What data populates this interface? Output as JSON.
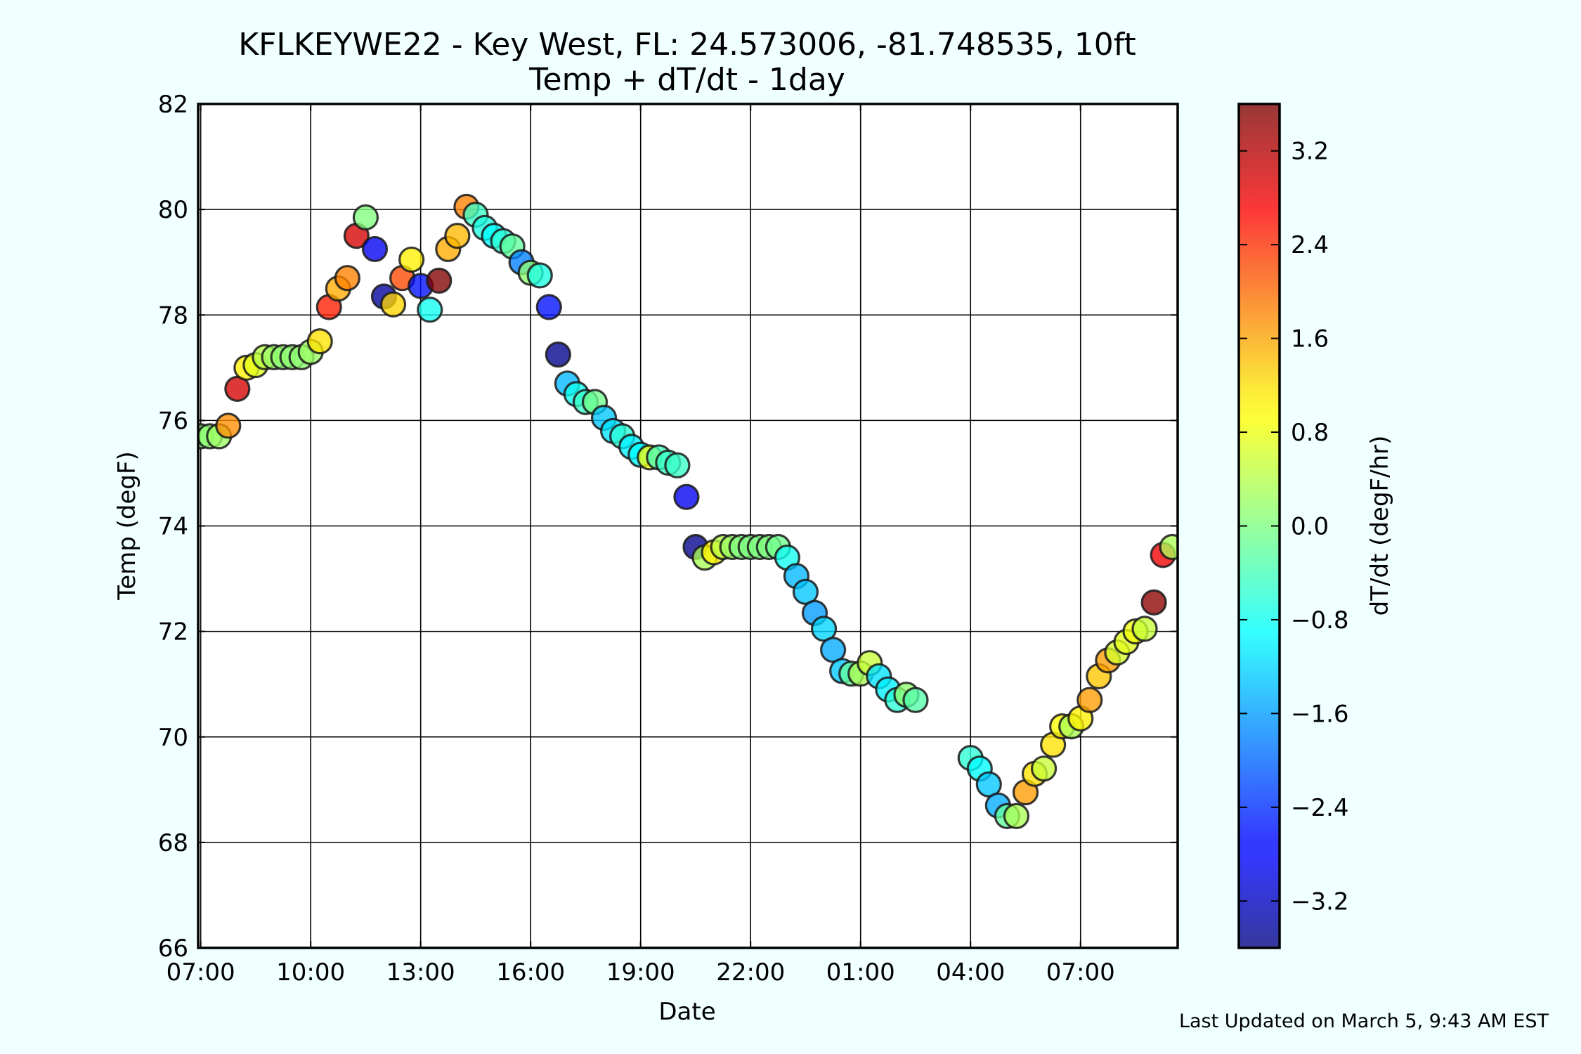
{
  "chart_data": {
    "type": "scatter",
    "title": "KFLKEYWE22 - Key West, FL: 24.573006, -81.748535, 10ft",
    "subtitle": "Temp + dT/dt - 1day",
    "xlabel": "Date",
    "ylabel": "Temp (degF)",
    "x_unit": "hours since 07:00 (first day)",
    "xlim": [
      -0.07,
      26.65
    ],
    "ylim": [
      66,
      82
    ],
    "yticks": [
      66,
      68,
      70,
      72,
      74,
      76,
      78,
      80,
      82
    ],
    "xticks": [
      {
        "x": 0,
        "label": "07:00"
      },
      {
        "x": 3,
        "label": "10:00"
      },
      {
        "x": 6,
        "label": "13:00"
      },
      {
        "x": 9,
        "label": "16:00"
      },
      {
        "x": 12,
        "label": "19:00"
      },
      {
        "x": 15,
        "label": "22:00"
      },
      {
        "x": 18,
        "label": "01:00"
      },
      {
        "x": 21,
        "label": "04:00"
      },
      {
        "x": 24,
        "label": "07:00"
      }
    ],
    "grid": true,
    "colorbar": {
      "label": "dT/dt (degF/hr)",
      "range": [
        -3.6,
        3.6
      ],
      "ticks": [
        3.2,
        2.4,
        1.6,
        0.8,
        0.0,
        -0.8,
        -1.6,
        -2.4,
        -3.2
      ],
      "tick_labels": [
        "3.2",
        "2.4",
        "1.6",
        "0.8",
        "0.0",
        "−0.8",
        "−1.6",
        "−2.4",
        "−3.2"
      ],
      "colormap": "jet"
    },
    "points": [
      {
        "x": 0.0,
        "y": 75.7,
        "c": 0.0
      },
      {
        "x": 0.25,
        "y": 75.7,
        "c": 0.1
      },
      {
        "x": 0.5,
        "y": 75.7,
        "c": 0.2
      },
      {
        "x": 0.75,
        "y": 75.9,
        "c": 1.7
      },
      {
        "x": 1.0,
        "y": 76.6,
        "c": 3.0
      },
      {
        "x": 1.25,
        "y": 77.0,
        "c": 1.0
      },
      {
        "x": 1.5,
        "y": 77.05,
        "c": 0.7
      },
      {
        "x": 1.75,
        "y": 77.2,
        "c": 0.4
      },
      {
        "x": 2.0,
        "y": 77.2,
        "c": 0.2
      },
      {
        "x": 2.25,
        "y": 77.2,
        "c": 0.1
      },
      {
        "x": 2.5,
        "y": 77.2,
        "c": 0.1
      },
      {
        "x": 2.75,
        "y": 77.2,
        "c": 0.1
      },
      {
        "x": 3.0,
        "y": 77.3,
        "c": 0.2
      },
      {
        "x": 3.25,
        "y": 77.5,
        "c": 1.1
      },
      {
        "x": 3.5,
        "y": 78.15,
        "c": 2.5
      },
      {
        "x": 3.75,
        "y": 78.5,
        "c": 1.5
      },
      {
        "x": 4.0,
        "y": 78.7,
        "c": 1.8
      },
      {
        "x": 4.25,
        "y": 79.5,
        "c": 3.0
      },
      {
        "x": 4.5,
        "y": 79.85,
        "c": 0.0
      },
      {
        "x": 4.75,
        "y": 79.25,
        "c": -2.8
      },
      {
        "x": 5.0,
        "y": 78.35,
        "c": -3.4
      },
      {
        "x": 5.25,
        "y": 78.2,
        "c": 1.2
      },
      {
        "x": 5.5,
        "y": 78.7,
        "c": 2.2
      },
      {
        "x": 5.75,
        "y": 79.05,
        "c": 1.0
      },
      {
        "x": 6.0,
        "y": 78.55,
        "c": -2.6
      },
      {
        "x": 6.25,
        "y": 78.1,
        "c": -0.8
      },
      {
        "x": 6.5,
        "y": 78.65,
        "c": 3.6
      },
      {
        "x": 6.75,
        "y": 79.25,
        "c": 1.5
      },
      {
        "x": 7.0,
        "y": 79.5,
        "c": 1.4
      },
      {
        "x": 7.25,
        "y": 80.05,
        "c": 1.8
      },
      {
        "x": 7.5,
        "y": 79.9,
        "c": -0.5
      },
      {
        "x": 7.75,
        "y": 79.65,
        "c": -0.7
      },
      {
        "x": 8.0,
        "y": 79.5,
        "c": -0.9
      },
      {
        "x": 8.25,
        "y": 79.4,
        "c": -0.6
      },
      {
        "x": 8.5,
        "y": 79.3,
        "c": -0.2
      },
      {
        "x": 8.75,
        "y": 79.0,
        "c": -1.8
      },
      {
        "x": 9.0,
        "y": 78.8,
        "c": 0.1
      },
      {
        "x": 9.25,
        "y": 78.75,
        "c": -0.7
      },
      {
        "x": 9.5,
        "y": 78.15,
        "c": -2.6
      },
      {
        "x": 9.75,
        "y": 77.25,
        "c": -3.5
      },
      {
        "x": 10.0,
        "y": 76.7,
        "c": -1.4
      },
      {
        "x": 10.25,
        "y": 76.5,
        "c": -0.8
      },
      {
        "x": 10.5,
        "y": 76.35,
        "c": -0.5
      },
      {
        "x": 10.75,
        "y": 76.35,
        "c": -0.1
      },
      {
        "x": 11.0,
        "y": 76.05,
        "c": -1.3
      },
      {
        "x": 11.25,
        "y": 75.8,
        "c": -1.1
      },
      {
        "x": 11.5,
        "y": 75.7,
        "c": -0.6
      },
      {
        "x": 11.75,
        "y": 75.5,
        "c": -1.0
      },
      {
        "x": 12.0,
        "y": 75.35,
        "c": -0.9
      },
      {
        "x": 12.25,
        "y": 75.3,
        "c": 0.8
      },
      {
        "x": 12.5,
        "y": 75.3,
        "c": -0.4
      },
      {
        "x": 12.75,
        "y": 75.2,
        "c": -0.5
      },
      {
        "x": 13.0,
        "y": 75.15,
        "c": -0.5
      },
      {
        "x": 13.25,
        "y": 74.55,
        "c": -2.8
      },
      {
        "x": 13.5,
        "y": 73.6,
        "c": -3.5
      },
      {
        "x": 13.75,
        "y": 73.4,
        "c": 0.3
      },
      {
        "x": 14.0,
        "y": 73.5,
        "c": 1.0
      },
      {
        "x": 14.25,
        "y": 73.6,
        "c": 0.4
      },
      {
        "x": 14.5,
        "y": 73.6,
        "c": 0.2
      },
      {
        "x": 14.75,
        "y": 73.6,
        "c": 0.0
      },
      {
        "x": 15.0,
        "y": 73.6,
        "c": 0.0
      },
      {
        "x": 15.25,
        "y": 73.6,
        "c": 0.0
      },
      {
        "x": 15.5,
        "y": 73.6,
        "c": 0.0
      },
      {
        "x": 15.75,
        "y": 73.6,
        "c": -0.1
      },
      {
        "x": 16.0,
        "y": 73.4,
        "c": -0.8
      },
      {
        "x": 16.25,
        "y": 73.05,
        "c": -1.4
      },
      {
        "x": 16.5,
        "y": 72.75,
        "c": -1.3
      },
      {
        "x": 16.75,
        "y": 72.35,
        "c": -1.6
      },
      {
        "x": 17.0,
        "y": 72.05,
        "c": -1.2
      },
      {
        "x": 17.25,
        "y": 71.65,
        "c": -1.5
      },
      {
        "x": 17.5,
        "y": 71.25,
        "c": -1.3
      },
      {
        "x": 17.75,
        "y": 71.2,
        "c": -0.2
      },
      {
        "x": 18.0,
        "y": 71.2,
        "c": 0.3
      },
      {
        "x": 18.25,
        "y": 71.4,
        "c": 0.5
      },
      {
        "x": 18.5,
        "y": 71.15,
        "c": -1.1
      },
      {
        "x": 18.75,
        "y": 70.9,
        "c": -1.0
      },
      {
        "x": 19.0,
        "y": 70.7,
        "c": -0.6
      },
      {
        "x": 19.25,
        "y": 70.8,
        "c": 0.1
      },
      {
        "x": 19.5,
        "y": 70.7,
        "c": -0.3
      },
      {
        "x": 21.0,
        "y": 69.6,
        "c": -0.6
      },
      {
        "x": 21.25,
        "y": 69.4,
        "c": -0.9
      },
      {
        "x": 21.5,
        "y": 69.1,
        "c": -1.3
      },
      {
        "x": 21.75,
        "y": 68.7,
        "c": -1.5
      },
      {
        "x": 22.0,
        "y": 68.5,
        "c": -0.2
      },
      {
        "x": 22.25,
        "y": 68.5,
        "c": 0.3
      },
      {
        "x": 22.5,
        "y": 68.95,
        "c": 1.6
      },
      {
        "x": 22.75,
        "y": 69.3,
        "c": 1.1
      },
      {
        "x": 23.0,
        "y": 69.4,
        "c": 0.5
      },
      {
        "x": 23.25,
        "y": 69.85,
        "c": 1.1
      },
      {
        "x": 23.5,
        "y": 70.2,
        "c": 0.9
      },
      {
        "x": 23.75,
        "y": 70.2,
        "c": 0.3
      },
      {
        "x": 24.0,
        "y": 70.35,
        "c": 1.0
      },
      {
        "x": 24.25,
        "y": 70.7,
        "c": 1.6
      },
      {
        "x": 24.5,
        "y": 71.15,
        "c": 1.3
      },
      {
        "x": 24.75,
        "y": 71.45,
        "c": 1.6
      },
      {
        "x": 25.0,
        "y": 71.6,
        "c": 0.6
      },
      {
        "x": 25.25,
        "y": 71.8,
        "c": 0.7
      },
      {
        "x": 25.5,
        "y": 72.0,
        "c": 0.8
      },
      {
        "x": 25.75,
        "y": 72.05,
        "c": 0.5
      },
      {
        "x": 26.0,
        "y": 72.55,
        "c": 3.5
      },
      {
        "x": 26.25,
        "y": 73.45,
        "c": 2.8
      },
      {
        "x": 26.5,
        "y": 73.6,
        "c": 0.3
      }
    ]
  },
  "footer": {
    "last_updated": "Last Updated on March 5, 9:43 AM EST"
  }
}
